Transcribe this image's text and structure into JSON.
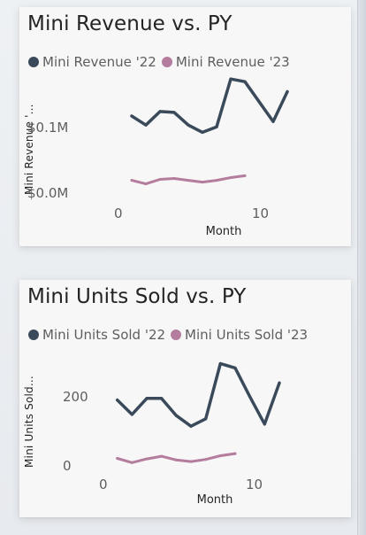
{
  "colors": {
    "series_22": "#3b4a5a",
    "series_23": "#b47c9d",
    "title": "#252423",
    "muted": "#605e5c",
    "card": "#f7f7f8"
  },
  "chart_data": [
    {
      "type": "line",
      "title": "Mini Revenue vs. PY",
      "xlabel": "Month",
      "ylabel": "Mini Revenue '...",
      "xlim": [
        0,
        12
      ],
      "ylim": [
        0,
        0.14
      ],
      "grid": false,
      "legend_position": "top-left",
      "x_ticks": [
        0,
        10
      ],
      "x_tick_labels": [
        "0",
        "10"
      ],
      "y_ticks": [
        0,
        0.1
      ],
      "y_tick_labels": [
        "$0.0M",
        "$0.1M"
      ],
      "series": [
        {
          "name": "Mini Revenue '22",
          "x": [
            1,
            2,
            3,
            4,
            5,
            6,
            7,
            8,
            9,
            10,
            11,
            12
          ],
          "values": [
            0.092,
            0.082,
            0.097,
            0.096,
            0.082,
            0.074,
            0.08,
            0.133,
            0.13,
            0.108,
            0.086,
            0.119
          ]
        },
        {
          "name": "Mini Revenue '23",
          "x": [
            1,
            2,
            3,
            4,
            5,
            6,
            7,
            8,
            9
          ],
          "values": [
            0.021,
            0.017,
            0.022,
            0.023,
            0.021,
            0.019,
            0.021,
            0.024,
            0.026
          ]
        }
      ]
    },
    {
      "type": "line",
      "title": "Mini Units Sold vs. PY",
      "xlabel": "Month",
      "ylabel": "Mini Units Sold...",
      "xlim": [
        0,
        12
      ],
      "ylim": [
        0,
        230
      ],
      "grid": false,
      "legend_position": "top-left",
      "x_ticks": [
        0,
        10
      ],
      "x_tick_labels": [
        "0",
        "10"
      ],
      "y_ticks": [
        0,
        200
      ],
      "y_tick_labels": [
        "0",
        "200"
      ],
      "series": [
        {
          "name": "Mini Units Sold '22",
          "x": [
            1,
            2,
            3,
            4,
            5,
            6,
            7,
            8,
            9,
            10,
            11,
            12
          ],
          "values": [
            133,
            106,
            136,
            136,
            104,
            84,
            98,
            201,
            193,
            139,
            88,
            165
          ]
        },
        {
          "name": "Mini Units Sold '23",
          "x": [
            1,
            2,
            3,
            4,
            5,
            6,
            7,
            8,
            9
          ],
          "values": [
            24,
            16,
            23,
            28,
            21,
            18,
            22,
            29,
            33
          ]
        }
      ]
    }
  ]
}
